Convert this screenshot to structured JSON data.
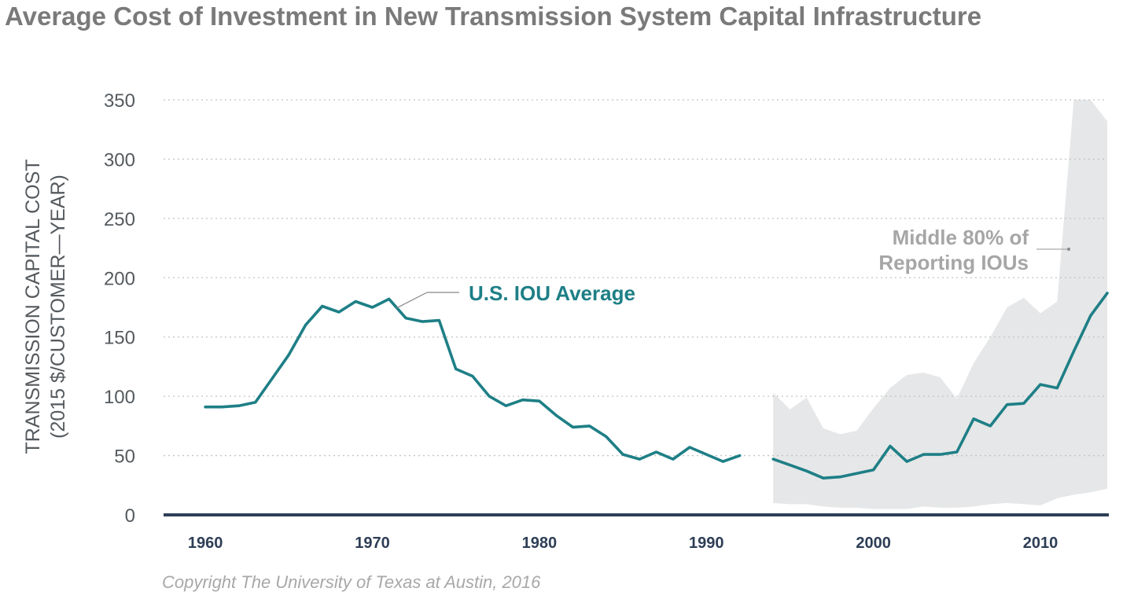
{
  "chart_data": {
    "type": "line",
    "title": "Average Cost of Investment in New Transmission System Capital Infrastructure",
    "ylabel_line1": "TRANSMISSION CAPITAL COST",
    "ylabel_line2": "(2015 $/CUSTOMER—YEAR)",
    "xlabel": "",
    "xlim": [
      1957.5,
      2014
    ],
    "ylim": [
      0,
      350
    ],
    "yticks": [
      0,
      50,
      100,
      150,
      200,
      250,
      300,
      350
    ],
    "xticks": [
      1960,
      1970,
      1980,
      1990,
      2000,
      2010
    ],
    "grid": true,
    "colors": {
      "line": "#1e7f86",
      "band": "#e6e7e8",
      "axis": "#2e3e56",
      "grid": "#c4c4c4"
    },
    "series": [
      {
        "name": "U.S. IOU Average",
        "segments": [
          [
            [
              1960,
              91
            ],
            [
              1961,
              91
            ],
            [
              1962,
              92
            ],
            [
              1963,
              95
            ],
            [
              1964,
              115
            ],
            [
              1965,
              135
            ],
            [
              1966,
              160
            ],
            [
              1967,
              176
            ],
            [
              1968,
              171
            ],
            [
              1969,
              180
            ],
            [
              1970,
              175
            ],
            [
              1971,
              182
            ],
            [
              1972,
              166
            ],
            [
              1973,
              163
            ],
            [
              1974,
              164
            ],
            [
              1975,
              123
            ],
            [
              1976,
              117
            ],
            [
              1977,
              100
            ],
            [
              1978,
              92
            ],
            [
              1979,
              97
            ],
            [
              1980,
              96
            ],
            [
              1981,
              84
            ],
            [
              1982,
              74
            ],
            [
              1983,
              75
            ],
            [
              1984,
              66
            ],
            [
              1985,
              51
            ],
            [
              1986,
              47
            ],
            [
              1987,
              53
            ],
            [
              1988,
              47
            ],
            [
              1989,
              57
            ],
            [
              1990,
              51
            ],
            [
              1991,
              45
            ],
            [
              1992,
              50
            ]
          ],
          [
            [
              1994,
              47
            ],
            [
              1995,
              42
            ],
            [
              1996,
              37
            ],
            [
              1997,
              31
            ],
            [
              1998,
              32
            ],
            [
              1999,
              35
            ],
            [
              2000,
              38
            ],
            [
              2001,
              58
            ],
            [
              2002,
              45
            ],
            [
              2003,
              51
            ],
            [
              2004,
              51
            ],
            [
              2005,
              53
            ],
            [
              2006,
              81
            ],
            [
              2007,
              75
            ],
            [
              2008,
              93
            ],
            [
              2009,
              94
            ],
            [
              2010,
              110
            ],
            [
              2011,
              107
            ],
            [
              2012,
              138
            ],
            [
              2013,
              168
            ],
            [
              2014,
              187
            ]
          ]
        ]
      },
      {
        "name": "Middle 80% of Reporting IOUs",
        "band_upper": [
          [
            1994,
            103
          ],
          [
            1995,
            89
          ],
          [
            1996,
            99
          ],
          [
            1997,
            73
          ],
          [
            1998,
            68
          ],
          [
            1999,
            71
          ],
          [
            2000,
            90
          ],
          [
            2001,
            107
          ],
          [
            2002,
            118
          ],
          [
            2003,
            120
          ],
          [
            2004,
            116
          ],
          [
            2005,
            98
          ],
          [
            2006,
            128
          ],
          [
            2007,
            150
          ],
          [
            2008,
            175
          ],
          [
            2009,
            183
          ],
          [
            2010,
            170
          ],
          [
            2011,
            180
          ],
          [
            2012,
            350
          ],
          [
            2013,
            352
          ],
          [
            2014,
            332
          ]
        ],
        "band_lower": [
          [
            1994,
            10
          ],
          [
            1995,
            9
          ],
          [
            1996,
            9
          ],
          [
            1997,
            7
          ],
          [
            1998,
            6
          ],
          [
            1999,
            6
          ],
          [
            2000,
            5
          ],
          [
            2001,
            5
          ],
          [
            2002,
            5
          ],
          [
            2003,
            7
          ],
          [
            2004,
            6
          ],
          [
            2005,
            6
          ],
          [
            2006,
            7
          ],
          [
            2007,
            9
          ],
          [
            2008,
            10
          ],
          [
            2009,
            9
          ],
          [
            2010,
            8
          ],
          [
            2011,
            14
          ],
          [
            2012,
            17
          ],
          [
            2013,
            19
          ],
          [
            2014,
            22
          ]
        ]
      }
    ],
    "annotations": {
      "avg_label": "U.S. IOU Average",
      "band_label_line1": "Middle 80% of",
      "band_label_line2": "Reporting IOUs"
    }
  },
  "copyright": "Copyright The University of Texas at Austin, 2016"
}
